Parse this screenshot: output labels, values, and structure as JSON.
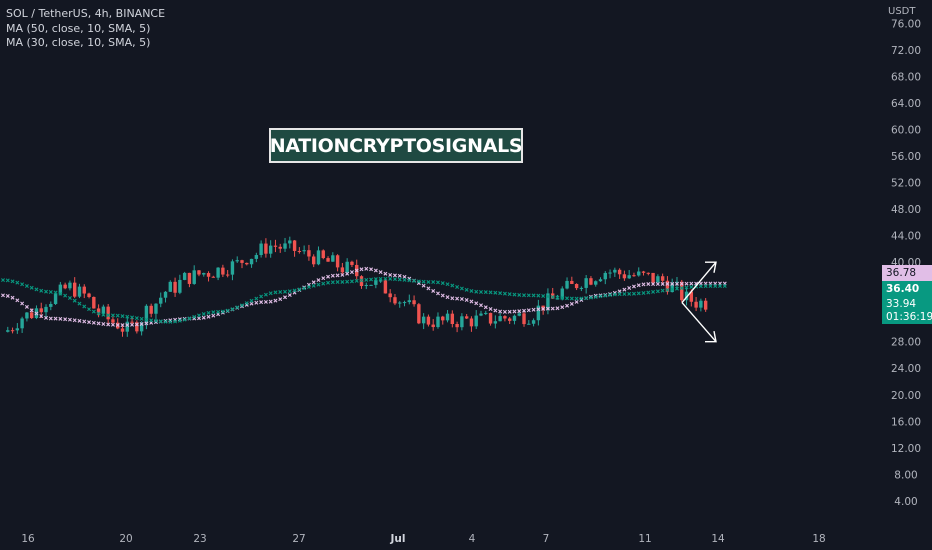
{
  "legend": {
    "symbol": "SOL / TetherUS, 4h, BINANCE",
    "ma50": "MA (50, close, 10, SMA, 5)",
    "ma30": "MA (30, close, 10, SMA, 5)"
  },
  "watermark": "NATIONCRYPTOSIGNALS",
  "price_axis": {
    "unit": "USDT"
  },
  "price_tags": {
    "ma50": "36.78",
    "ma30": "36.40",
    "last_price": "33.94",
    "countdown": "01:36:19"
  },
  "colors": {
    "background": "#131722",
    "up": "#26a69a",
    "down": "#ef5350",
    "ma50": "#e1bee7",
    "ma30": "#089981",
    "text": "#b2b5be"
  },
  "chart_data": {
    "type": "candlestick",
    "ylim": [
      0,
      78
    ],
    "y_ticks": [
      "76.00",
      "72.00",
      "68.00",
      "64.00",
      "60.00",
      "56.00",
      "52.00",
      "48.00",
      "44.00",
      "40.00",
      "36.00",
      "32.00",
      "28.00",
      "24.00",
      "20.00",
      "16.00",
      "12.00",
      "8.00",
      "4.00"
    ],
    "x_ticks": [
      "16",
      "20",
      "23",
      "27",
      "Jul",
      "4",
      "7",
      "11",
      "14",
      "18"
    ],
    "close_path": [
      [
        0,
        29.5
      ],
      [
        5,
        32
      ],
      [
        10,
        34.5
      ],
      [
        14,
        36.2
      ],
      [
        17,
        35
      ],
      [
        20,
        32.5
      ],
      [
        23,
        31
      ],
      [
        26,
        29.8
      ],
      [
        28,
        30.8
      ],
      [
        31,
        33.5
      ],
      [
        35,
        36
      ],
      [
        39,
        37.8
      ],
      [
        43,
        38.5
      ],
      [
        48,
        39.5
      ],
      [
        52,
        41
      ],
      [
        56,
        42.5
      ],
      [
        60,
        42
      ],
      [
        64,
        41
      ],
      [
        68,
        40
      ],
      [
        72,
        39
      ],
      [
        76,
        37.2
      ],
      [
        80,
        36
      ],
      [
        84,
        34
      ],
      [
        86,
        32.5
      ],
      [
        88,
        31.2
      ],
      [
        92,
        31
      ],
      [
        96,
        31.2
      ],
      [
        100,
        31.3
      ],
      [
        105,
        31.6
      ],
      [
        110,
        32
      ],
      [
        114,
        34
      ],
      [
        118,
        36
      ],
      [
        122,
        37.5
      ],
      [
        126,
        38.6
      ],
      [
        130,
        38.2
      ],
      [
        134,
        37.8
      ],
      [
        138,
        37.2
      ],
      [
        140,
        36.3
      ],
      [
        143,
        34.5
      ],
      [
        145,
        34
      ],
      [
        147,
        33.9
      ]
    ],
    "candle_count": 148,
    "series": [
      {
        "name": "MA (50, close, 10, SMA, 5)",
        "color": "#e1bee7",
        "values": [
          [
            0,
            35
          ],
          [
            10,
            31.5
          ],
          [
            25,
            30.5
          ],
          [
            40,
            31.5
          ],
          [
            55,
            34
          ],
          [
            70,
            38
          ],
          [
            76,
            39
          ],
          [
            82,
            38
          ],
          [
            95,
            34.5
          ],
          [
            105,
            32.5
          ],
          [
            115,
            33
          ],
          [
            125,
            35
          ],
          [
            135,
            36.7
          ],
          [
            148,
            36.78
          ]
        ]
      },
      {
        "name": "MA (30, close, 10, SMA, 5)",
        "color": "#089981",
        "values": [
          [
            0,
            37.3
          ],
          [
            10,
            35.5
          ],
          [
            22,
            32
          ],
          [
            35,
            31
          ],
          [
            45,
            32.5
          ],
          [
            58,
            35.5
          ],
          [
            70,
            37
          ],
          [
            80,
            37.5
          ],
          [
            90,
            37
          ],
          [
            100,
            35.5
          ],
          [
            110,
            35
          ],
          [
            120,
            34.5
          ],
          [
            130,
            35.2
          ],
          [
            148,
            36.4
          ]
        ]
      }
    ],
    "annotations": [
      {
        "type": "arrows",
        "from": "current price",
        "targets": "up to 40, down to 28"
      }
    ]
  }
}
